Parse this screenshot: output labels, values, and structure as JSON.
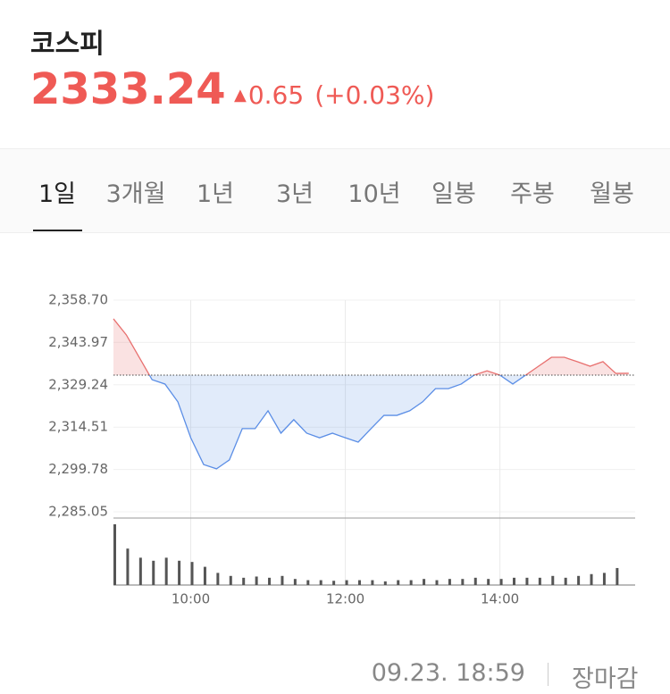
{
  "header": {
    "title": "코스피",
    "price": "2333.24",
    "change": "0.65",
    "change_pct": "(+0.03%)"
  },
  "tabs": {
    "items": [
      "1일",
      "3개월",
      "1년",
      "3년",
      "10년",
      "일봉",
      "주봉",
      "월봉"
    ],
    "active": 0
  },
  "footer": {
    "timestamp": "09.23. 18:59",
    "status": "장마감"
  },
  "chart_data": [
    {
      "type": "line",
      "x": [
        "09:00",
        "09:10",
        "09:20",
        "09:30",
        "09:40",
        "09:50",
        "10:00",
        "10:10",
        "10:20",
        "10:30",
        "10:40",
        "10:50",
        "11:00",
        "11:10",
        "11:20",
        "11:30",
        "11:40",
        "11:50",
        "12:00",
        "12:10",
        "12:20",
        "12:30",
        "12:40",
        "12:50",
        "13:00",
        "13:10",
        "13:20",
        "13:30",
        "13:40",
        "13:50",
        "14:00",
        "14:10",
        "14:20",
        "14:30",
        "14:40",
        "14:50",
        "15:00",
        "15:10",
        "15:20",
        "15:30",
        "15:40"
      ],
      "values": [
        2352.2,
        2346.6,
        2338.8,
        2331.0,
        2329.5,
        2323.3,
        2310.8,
        2301.5,
        2300.0,
        2303.1,
        2314.0,
        2314.0,
        2320.2,
        2312.4,
        2317.1,
        2312.4,
        2310.8,
        2312.4,
        2310.8,
        2309.3,
        2314.0,
        2318.6,
        2318.6,
        2320.2,
        2323.3,
        2327.9,
        2327.9,
        2329.5,
        2332.6,
        2334.1,
        2332.6,
        2329.5,
        2332.6,
        2335.7,
        2338.8,
        2338.8,
        2337.3,
        2335.7,
        2337.3,
        2333.2,
        2333.24
      ],
      "reference_line": 2332.59,
      "up_color": "#e8706f",
      "down_color": "#5b8ee6",
      "xlim": [
        "09:00",
        "15:45"
      ],
      "xticks": [
        "10:00",
        "12:00",
        "14:00"
      ],
      "ylim": [
        2285.05,
        2358.7
      ],
      "yticks": [
        {
          "value": 2358.7,
          "label": "2,358.70"
        },
        {
          "value": 2343.97,
          "label": "2,343.97"
        },
        {
          "value": 2329.24,
          "label": "2,329.24"
        },
        {
          "value": 2314.51,
          "label": "2,314.51"
        },
        {
          "value": 2299.78,
          "label": "2,299.78"
        },
        {
          "value": 2285.05,
          "label": "2,285.05"
        }
      ],
      "grid": true
    },
    {
      "type": "bar",
      "x": [
        "09:00",
        "09:10",
        "09:20",
        "09:30",
        "09:40",
        "09:50",
        "10:00",
        "10:10",
        "10:20",
        "10:30",
        "10:40",
        "10:50",
        "11:00",
        "11:10",
        "11:20",
        "11:30",
        "11:40",
        "11:50",
        "12:00",
        "12:10",
        "12:20",
        "12:30",
        "12:40",
        "12:50",
        "13:00",
        "13:10",
        "13:20",
        "13:30",
        "13:40",
        "13:50",
        "14:00",
        "14:10",
        "14:20",
        "14:30",
        "14:40",
        "14:50",
        "15:00",
        "15:10",
        "15:20",
        "15:30"
      ],
      "values": [
        100,
        60,
        45,
        40,
        45,
        40,
        38,
        30,
        20,
        15,
        12,
        14,
        12,
        15,
        10,
        8,
        8,
        7,
        8,
        8,
        8,
        6,
        8,
        8,
        10,
        8,
        10,
        10,
        12,
        10,
        10,
        12,
        12,
        12,
        15,
        12,
        15,
        18,
        20,
        28
      ],
      "color": "#555555",
      "ylim": [
        0,
        100
      ],
      "xlim": [
        "09:00",
        "15:45"
      ]
    }
  ]
}
